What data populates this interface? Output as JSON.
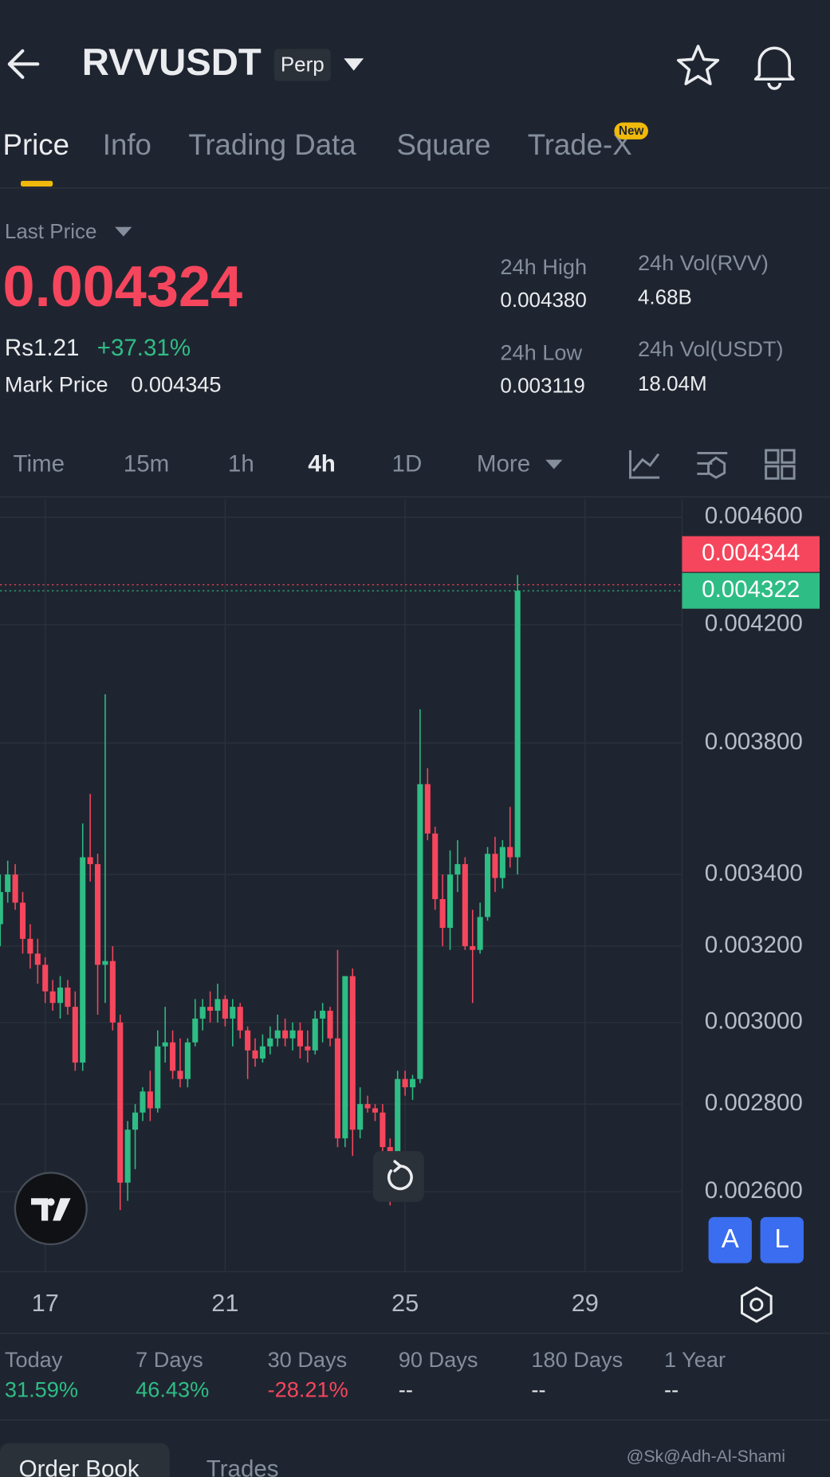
{
  "header": {
    "symbol": "RVVUSDT",
    "badge": "Perp"
  },
  "tabs": [
    "Price",
    "Info",
    "Trading Data",
    "Square",
    "Trade-X"
  ],
  "new_badge": "New",
  "ticker": {
    "last_price_label": "Last Price",
    "last_price": "0.004324",
    "local_price": "Rs1.21",
    "change": "+37.31%",
    "mark_price_label": "Mark Price",
    "mark_price": "0.004345",
    "stats": [
      {
        "label": "24h High",
        "value": "0.004380"
      },
      {
        "label": "24h Low",
        "value": "0.003119"
      },
      {
        "label": "24h Vol(RVV)",
        "value": "4.68B"
      },
      {
        "label": "24h Vol(USDT)",
        "value": "18.04M"
      }
    ]
  },
  "intervals": [
    "Time",
    "15m",
    "1h",
    "4h",
    "1D",
    "More"
  ],
  "chart_data": {
    "type": "candlestick",
    "log_scale": true,
    "grid": true,
    "up_color": "#2ebd85",
    "down_color": "#f6465d",
    "x": [
      16,
      16.1667,
      16.3333,
      16.5,
      16.6667,
      16.8333,
      17,
      17.1667,
      17.3333,
      17.5,
      17.6667,
      17.8333,
      18,
      18.1667,
      18.3333,
      18.5,
      18.6667,
      18.8333,
      19,
      19.1667,
      19.3333,
      19.5,
      19.6667,
      19.8333,
      20,
      20.1667,
      20.3333,
      20.5,
      20.6667,
      20.8333,
      21,
      21.1667,
      21.3333,
      21.5,
      21.6667,
      21.8333,
      22,
      22.1667,
      22.3333,
      22.5,
      22.6667,
      22.8333,
      23,
      23.1667,
      23.3333,
      23.5,
      23.6667,
      23.8333,
      24,
      24.1667,
      24.3333,
      24.5,
      24.6667,
      24.8333,
      25,
      25.1667,
      25.3333,
      25.5,
      25.6667,
      25.8333,
      26,
      26.1667,
      26.3333,
      26.5,
      26.6667,
      26.8333,
      27,
      27.1667,
      27.3333,
      27.5
    ],
    "open": [
      0.00326,
      0.00335,
      0.0034,
      0.00332,
      0.00322,
      0.00318,
      0.00315,
      0.00308,
      0.00305,
      0.00309,
      0.00304,
      0.0029,
      0.00345,
      0.00343,
      0.00315,
      0.00316,
      0.003,
      0.00262,
      0.00274,
      0.00278,
      0.00283,
      0.00279,
      0.00294,
      0.00295,
      0.00288,
      0.00286,
      0.00295,
      0.00301,
      0.00304,
      0.00303,
      0.00306,
      0.00301,
      0.00304,
      0.00298,
      0.00293,
      0.00291,
      0.00294,
      0.00296,
      0.00298,
      0.00296,
      0.00298,
      0.00294,
      0.00293,
      0.00301,
      0.00303,
      0.00296,
      0.00272,
      0.00312,
      0.00274,
      0.0028,
      0.00279,
      0.00278,
      0.0027,
      0.00268,
      0.00286,
      0.00284,
      0.00286,
      0.00367,
      0.00352,
      0.00333,
      0.00325,
      0.0034,
      0.00343,
      0.0032,
      0.00319,
      0.00328,
      0.00346,
      0.00339,
      0.00348,
      0.00345
    ],
    "high": [
      0.0034,
      0.00344,
      0.00343,
      0.00335,
      0.00326,
      0.00322,
      0.00317,
      0.00311,
      0.00312,
      0.00311,
      0.00308,
      0.00355,
      0.00364,
      0.00346,
      0.00396,
      0.0032,
      0.00302,
      0.00276,
      0.0028,
      0.00284,
      0.00288,
      0.00298,
      0.00304,
      0.00298,
      0.00296,
      0.00296,
      0.00306,
      0.00306,
      0.00308,
      0.0031,
      0.00307,
      0.00306,
      0.00305,
      0.00299,
      0.00296,
      0.00297,
      0.00299,
      0.00302,
      0.00301,
      0.003,
      0.003,
      0.00298,
      0.00303,
      0.00305,
      0.00304,
      0.00319,
      0.00312,
      0.00314,
      0.00284,
      0.00282,
      0.0028,
      0.0028,
      0.00272,
      0.00288,
      0.00288,
      0.00287,
      0.00391,
      0.00372,
      0.00354,
      0.0034,
      0.00347,
      0.0035,
      0.00345,
      0.0033,
      0.00332,
      0.00348,
      0.00351,
      0.0035,
      0.0036,
      0.00438
    ],
    "low": [
      0.0032,
      0.00332,
      0.0033,
      0.00318,
      0.00314,
      0.0031,
      0.00305,
      0.00303,
      0.00301,
      0.00302,
      0.00288,
      0.00288,
      0.00338,
      0.00302,
      0.00305,
      0.00298,
      0.00256,
      0.00258,
      0.00265,
      0.00276,
      0.00276,
      0.00278,
      0.0029,
      0.00286,
      0.00284,
      0.00284,
      0.00294,
      0.00298,
      0.003,
      0.003,
      0.00299,
      0.00294,
      0.00296,
      0.00286,
      0.00289,
      0.0029,
      0.00292,
      0.00294,
      0.00294,
      0.00293,
      0.00291,
      0.0029,
      0.00292,
      0.00295,
      0.00294,
      0.0027,
      0.0027,
      0.00268,
      0.00272,
      0.00278,
      0.00276,
      0.00268,
      0.00257,
      0.00266,
      0.00282,
      0.00281,
      0.00285,
      0.0035,
      0.0033,
      0.0032,
      0.00319,
      0.00335,
      0.00319,
      0.00305,
      0.00318,
      0.00327,
      0.00335,
      0.00336,
      0.00342,
      0.0034
    ],
    "close": [
      0.00335,
      0.0034,
      0.00332,
      0.00322,
      0.00318,
      0.00315,
      0.00308,
      0.00305,
      0.00309,
      0.00304,
      0.0029,
      0.00345,
      0.00343,
      0.00315,
      0.00316,
      0.003,
      0.00262,
      0.00274,
      0.00278,
      0.00283,
      0.00279,
      0.00294,
      0.00295,
      0.00288,
      0.00286,
      0.00295,
      0.00301,
      0.00304,
      0.00303,
      0.00306,
      0.00301,
      0.00304,
      0.00298,
      0.00293,
      0.00291,
      0.00294,
      0.00296,
      0.00298,
      0.00296,
      0.00298,
      0.00294,
      0.00293,
      0.00301,
      0.00303,
      0.00296,
      0.00272,
      0.00312,
      0.00274,
      0.0028,
      0.00279,
      0.00278,
      0.0027,
      0.00268,
      0.00286,
      0.00284,
      0.00286,
      0.00367,
      0.00352,
      0.00333,
      0.00325,
      0.0034,
      0.00343,
      0.0032,
      0.00319,
      0.00328,
      0.00346,
      0.00339,
      0.00348,
      0.00345,
      0.004322
    ],
    "xlim": [
      15.995,
      31.157
    ],
    "xticks": [
      17,
      21,
      25,
      29
    ],
    "ylim": [
      0.00243,
      0.00467
    ],
    "yticks": [
      {
        "value": 0.0046,
        "label": "0.004600"
      },
      {
        "value": 0.0042,
        "label": "0.004200"
      },
      {
        "value": 0.0038,
        "label": "0.003800"
      },
      {
        "value": 0.0034,
        "label": "0.003400"
      },
      {
        "value": 0.0032,
        "label": "0.003200"
      },
      {
        "value": 0.003,
        "label": "0.003000"
      },
      {
        "value": 0.0028,
        "label": "0.002800"
      },
      {
        "value": 0.0026,
        "label": "0.002600"
      }
    ],
    "price_lines": [
      {
        "value": 0.004344,
        "color": "#f6465d"
      },
      {
        "value": 0.004322,
        "color": "#2ebd85"
      }
    ]
  },
  "chart_buttons": [
    "A",
    "L"
  ],
  "performance": [
    {
      "label": "Today",
      "value": "31.59%",
      "color": "#2ebd85"
    },
    {
      "label": "7 Days",
      "value": "46.43%",
      "color": "#2ebd85"
    },
    {
      "label": "30 Days",
      "value": "-28.21%",
      "color": "#f6465d"
    },
    {
      "label": "90 Days",
      "value": "--",
      "color": "#eaecef"
    },
    {
      "label": "180 Days",
      "value": "--",
      "color": "#eaecef"
    },
    {
      "label": "1 Year",
      "value": "--",
      "color": "#eaecef"
    }
  ],
  "bottom_tabs": [
    "Order Book",
    "Trades"
  ],
  "watermark": "@Sk@Adh-Al-Shami"
}
